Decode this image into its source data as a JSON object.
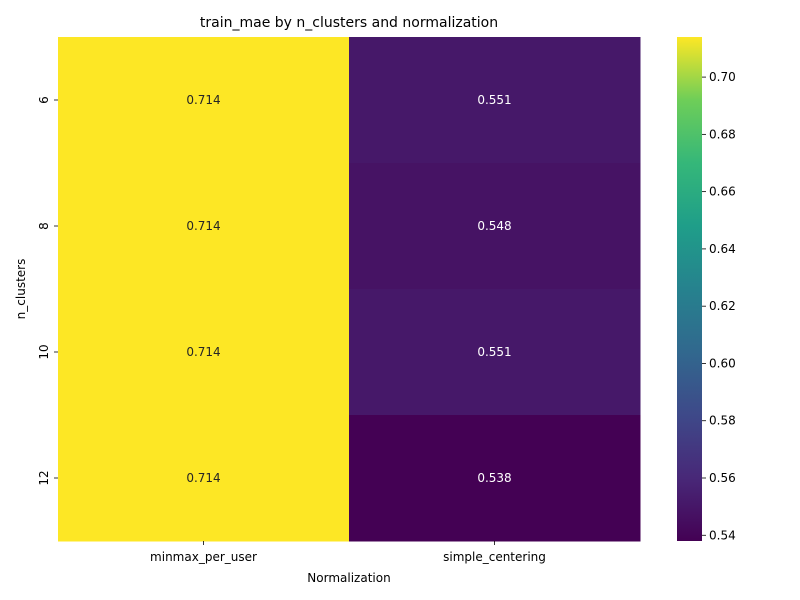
{
  "chart_data": {
    "type": "heatmap",
    "title": "train_mae by n_clusters and normalization",
    "xlabel": "Normalization",
    "ylabel": "n_clusters",
    "x_categories": [
      "minmax_per_user",
      "simple_centering"
    ],
    "y_categories": [
      "6",
      "8",
      "10",
      "12"
    ],
    "values": [
      [
        0.714,
        0.551
      ],
      [
        0.714,
        0.548
      ],
      [
        0.714,
        0.551
      ],
      [
        0.714,
        0.538
      ]
    ],
    "value_labels": [
      [
        "0.714",
        "0.551"
      ],
      [
        "0.714",
        "0.548"
      ],
      [
        "0.714",
        "0.551"
      ],
      [
        "0.714",
        "0.538"
      ]
    ],
    "colormap": "viridis",
    "color_range": [
      0.538,
      0.714
    ],
    "colorbar_ticks": [
      "0.54",
      "0.56",
      "0.58",
      "0.60",
      "0.62",
      "0.64",
      "0.66",
      "0.68",
      "0.70"
    ],
    "colorbar_tick_values": [
      0.54,
      0.56,
      0.58,
      0.6,
      0.62,
      0.64,
      0.66,
      0.68,
      0.7
    ],
    "grid": false,
    "legend": "colorbar-right"
  }
}
